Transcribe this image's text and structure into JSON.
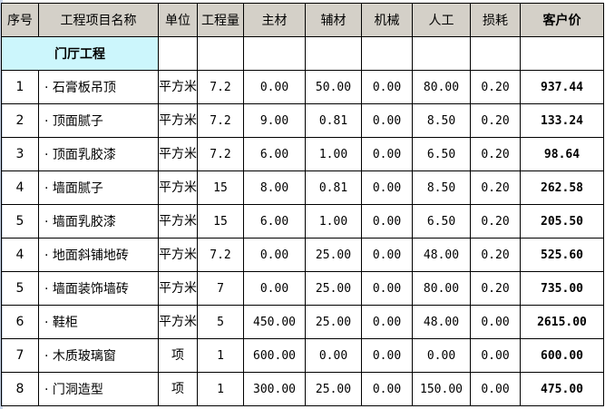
{
  "headers": [
    "序号",
    "工程项目名称",
    "单位",
    "工程量",
    "主材",
    "辅材",
    "机械",
    "人工",
    "损耗",
    "客户价"
  ],
  "section_title": "门厅工程",
  "rows": [
    {
      "no": "1",
      "name": "· 石膏板吊顶",
      "unit": "平方米",
      "qty": "7.2",
      "main": "0.00",
      "aux": "50.00",
      "mech": "0.00",
      "labor": "80.00",
      "loss": "0.20",
      "price": "937.44"
    },
    {
      "no": "2",
      "name": "· 顶面腻子",
      "unit": "平方米",
      "qty": "7.2",
      "main": "9.00",
      "aux": "0.81",
      "mech": "0.00",
      "labor": "8.50",
      "loss": "0.20",
      "price": "133.24"
    },
    {
      "no": "3",
      "name": "· 顶面乳胶漆",
      "unit": "平方米",
      "qty": "7.2",
      "main": "6.00",
      "aux": "1.00",
      "mech": "0.00",
      "labor": "6.50",
      "loss": "0.20",
      "price": "98.64"
    },
    {
      "no": "4",
      "name": "· 墙面腻子",
      "unit": "平方米",
      "qty": "15",
      "main": "8.00",
      "aux": "0.81",
      "mech": "0.00",
      "labor": "8.50",
      "loss": "0.20",
      "price": "262.58"
    },
    {
      "no": "5",
      "name": "· 墙面乳胶漆",
      "unit": "平方米",
      "qty": "15",
      "main": "6.00",
      "aux": "1.00",
      "mech": "0.00",
      "labor": "6.50",
      "loss": "0.20",
      "price": "205.50"
    },
    {
      "no": "4",
      "name": "· 地面斜铺地砖",
      "unit": "平方米",
      "qty": "7.2",
      "main": "0.00",
      "aux": "25.00",
      "mech": "0.00",
      "labor": "48.00",
      "loss": "0.20",
      "price": "525.60"
    },
    {
      "no": "5",
      "name": "· 墙面装饰墙砖",
      "unit": "平方米",
      "qty": "7",
      "main": "0.00",
      "aux": "25.00",
      "mech": "0.00",
      "labor": "80.00",
      "loss": "0.20",
      "price": "735.00"
    },
    {
      "no": "6",
      "name": "· 鞋柜",
      "unit": "平方米",
      "qty": "5",
      "main": "450.00",
      "aux": "25.00",
      "mech": "0.00",
      "labor": "48.00",
      "loss": "0.00",
      "price": "2615.00"
    },
    {
      "no": "7",
      "name": "· 木质玻璃窗",
      "unit": "项",
      "qty": "1",
      "main": "600.00",
      "aux": "0.00",
      "mech": "0.00",
      "labor": "0.00",
      "loss": "0.00",
      "price": "600.00"
    },
    {
      "no": "8",
      "name": "· 门洞造型",
      "unit": "项",
      "qty": "1",
      "main": "300.00",
      "aux": "25.00",
      "mech": "0.00",
      "labor": "150.00",
      "loss": "0.00",
      "price": "475.00"
    }
  ]
}
